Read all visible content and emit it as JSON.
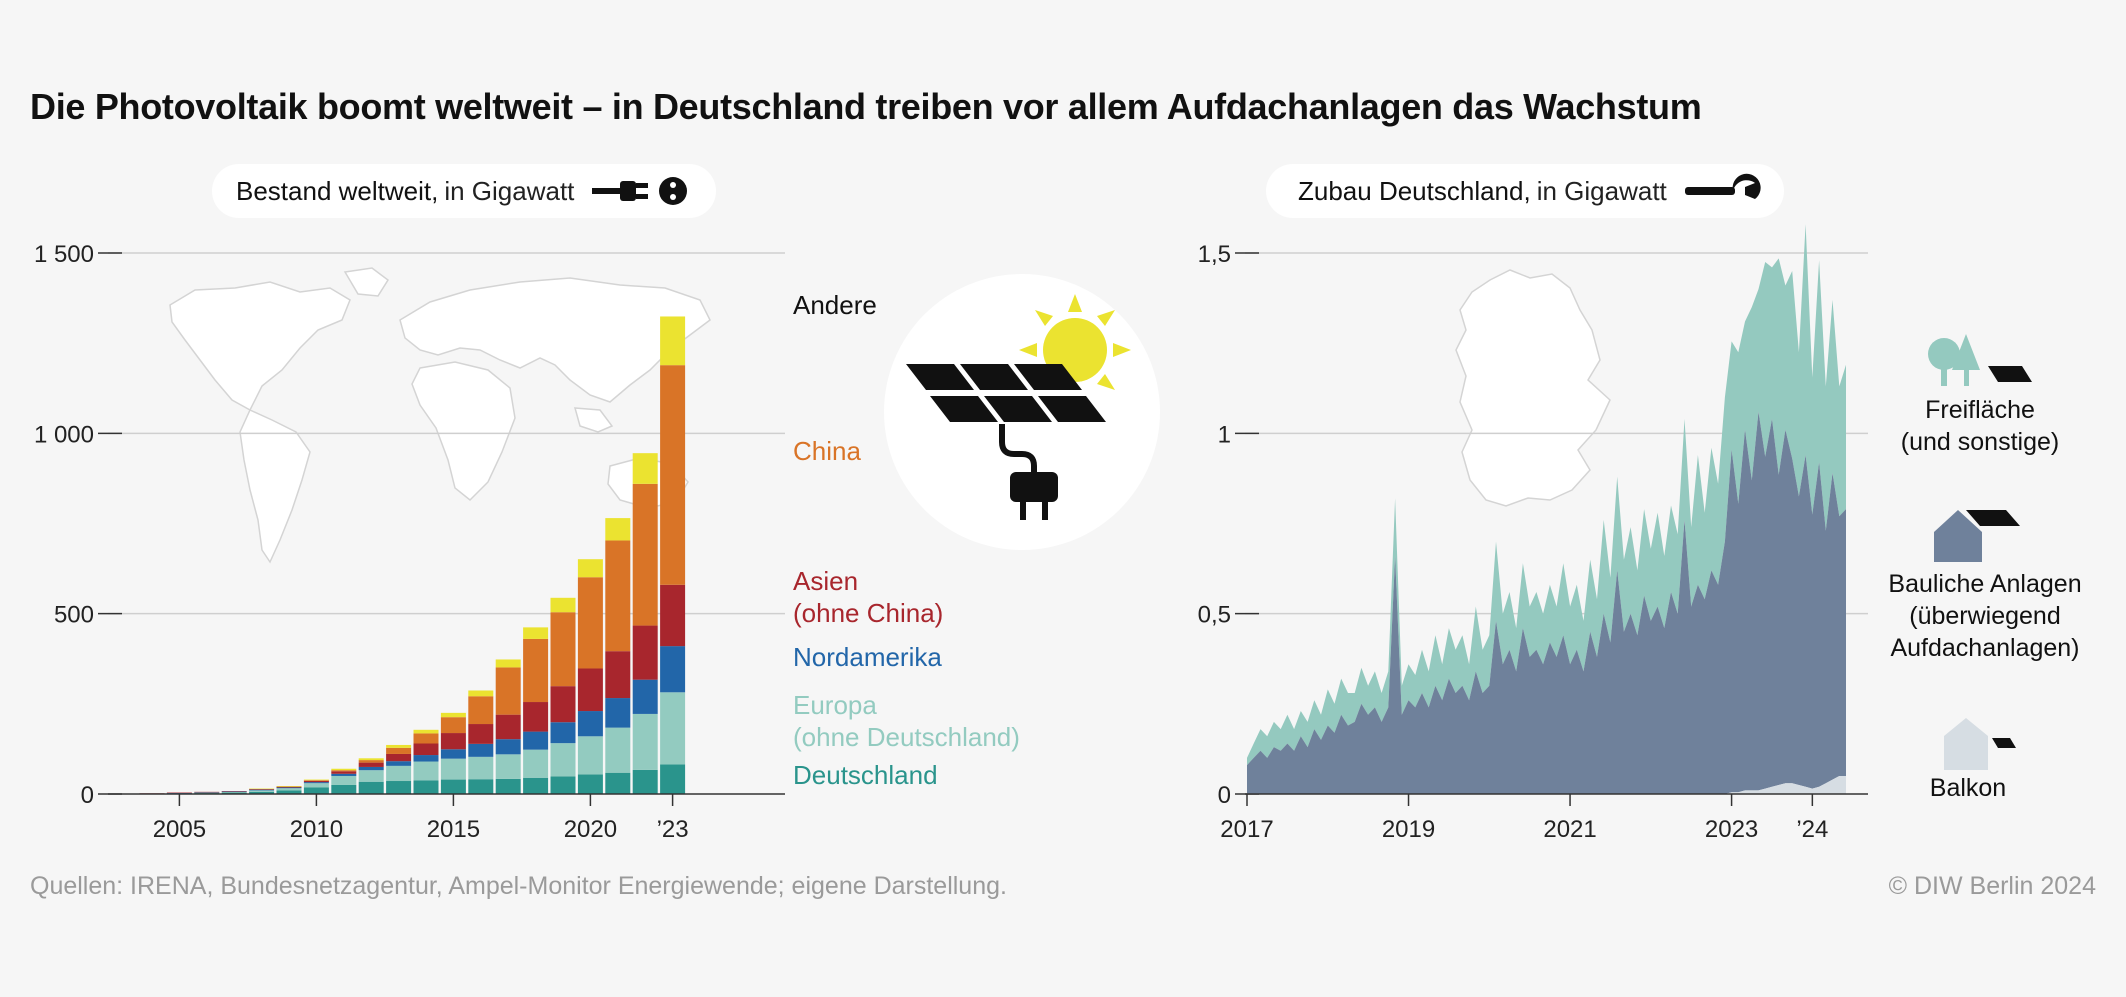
{
  "title": "Die Photovoltaik boomt weltweit – in Deutschland treiben vor allem Aufdachanlagen das Wachstum",
  "left_panel": {
    "title_bold": "Bestand weltweit,",
    "title_rest": "in Gigawatt"
  },
  "right_panel": {
    "title_bold": "Zubau Deutschland,",
    "title_rest": "in Gigawatt"
  },
  "legend_left": {
    "andere": "Andere",
    "china": "China",
    "asien_1": "Asien",
    "asien_2": "(ohne China)",
    "nordamerika": "Nordamerika",
    "europa_1": "Europa",
    "europa_2": "(ohne Deutschland)",
    "deutschland": "Deutschland"
  },
  "legend_right": {
    "freiflaeche_1": "Freifläche",
    "freiflaeche_2": "(und sonstige)",
    "bauliche_1": "Bauliche Anlagen",
    "bauliche_2": "(überwiegend",
    "bauliche_3": "Aufdachanlagen)",
    "balkon": "Balkon"
  },
  "footer": {
    "source": "Quellen: IRENA, Bundesnetzagentur, Ampel-Monitor Energiewende; eigene Darstellung.",
    "copyright": "© DIW Berlin 2024"
  },
  "colors": {
    "deutschland": "#2a948c",
    "europa": "#93cbc0",
    "nordamerika": "#2266a9",
    "asien": "#a8262d",
    "china": "#d97427",
    "andere": "#ebe330",
    "freiflaeche": "#94c9bf",
    "bauliche": "#6f819b",
    "balkon": "#d6dde3"
  },
  "chart_data": [
    {
      "type": "bar",
      "stacked": true,
      "title": "Bestand weltweit, in Gigawatt",
      "categories": [
        "2004",
        "2005",
        "2006",
        "2007",
        "2008",
        "2009",
        "2010",
        "2011",
        "2012",
        "2013",
        "2014",
        "2015",
        "2016",
        "2017",
        "2018",
        "2019",
        "2020",
        "2021",
        "2022",
        "2023"
      ],
      "x_tick_labels": [
        "2005",
        "2010",
        "2015",
        "2020",
        "’23"
      ],
      "y_tick_labels": [
        "0",
        "500",
        "1 000",
        "1 500"
      ],
      "ylim": [
        0,
        1500
      ],
      "series": [
        {
          "name": "Deutschland",
          "values": [
            1,
            2,
            3,
            4,
            6,
            10,
            18,
            25,
            34,
            36,
            38,
            40,
            41,
            42,
            45,
            49,
            54,
            59,
            67,
            82
          ]
        },
        {
          "name": "Europa (ohne Deutschland)",
          "values": [
            0,
            0,
            1,
            2,
            4,
            6,
            12,
            25,
            32,
            42,
            52,
            58,
            62,
            68,
            78,
            92,
            106,
            125,
            155,
            200
          ]
        },
        {
          "name": "Nordamerika",
          "values": [
            0,
            1,
            1,
            1,
            2,
            2,
            3,
            6,
            9,
            13,
            18,
            26,
            36,
            42,
            50,
            58,
            70,
            82,
            95,
            128
          ]
        },
        {
          "name": "Asien (ohne China)",
          "values": [
            1,
            1,
            1,
            1,
            2,
            2,
            4,
            7,
            12,
            20,
            32,
            45,
            55,
            68,
            82,
            100,
            118,
            130,
            150,
            170
          ]
        },
        {
          "name": "China",
          "values": [
            0,
            0,
            0,
            0,
            0,
            1,
            1,
            3,
            7,
            17,
            28,
            44,
            77,
            131,
            175,
            205,
            253,
            307,
            393,
            609
          ]
        },
        {
          "name": "Andere",
          "values": [
            0,
            0,
            0,
            0,
            1,
            1,
            2,
            4,
            5,
            8,
            10,
            12,
            16,
            22,
            32,
            40,
            50,
            62,
            85,
            135
          ]
        }
      ]
    },
    {
      "type": "area",
      "stacked": true,
      "title": "Zubau Deutschland, in Gigawatt",
      "x_tick_labels": [
        "2017",
        "2019",
        "2021",
        "2023",
        "’24"
      ],
      "y_tick_labels": [
        "0",
        "0,5",
        "1",
        "1,5"
      ],
      "ylim": [
        0,
        1.5
      ],
      "x_start": "2017-01",
      "x_end": "2024-06",
      "series": [
        {
          "name": "Balkon",
          "values": [
            0,
            0,
            0,
            0,
            0,
            0,
            0,
            0,
            0,
            0,
            0,
            0,
            0,
            0,
            0,
            0,
            0,
            0,
            0,
            0,
            0,
            0,
            0,
            0,
            0,
            0,
            0,
            0,
            0,
            0,
            0,
            0,
            0,
            0,
            0,
            0,
            0,
            0,
            0,
            0,
            0,
            0,
            0,
            0,
            0,
            0,
            0,
            0,
            0,
            0,
            0,
            0,
            0,
            0,
            0,
            0,
            0,
            0,
            0,
            0,
            0,
            0,
            0,
            0,
            0,
            0,
            0,
            0,
            0,
            0,
            0,
            0,
            0.005,
            0.005,
            0.01,
            0.01,
            0.01,
            0.015,
            0.02,
            0.025,
            0.03,
            0.03,
            0.025,
            0.02,
            0.015,
            0.02,
            0.03,
            0.04,
            0.05,
            0.05
          ]
        },
        {
          "name": "Bauliche Anlagen",
          "values": [
            0.08,
            0.1,
            0.12,
            0.1,
            0.13,
            0.12,
            0.14,
            0.12,
            0.16,
            0.13,
            0.18,
            0.15,
            0.19,
            0.17,
            0.22,
            0.19,
            0.2,
            0.25,
            0.22,
            0.24,
            0.2,
            0.24,
            0.66,
            0.22,
            0.26,
            0.24,
            0.28,
            0.24,
            0.3,
            0.26,
            0.32,
            0.28,
            0.3,
            0.26,
            0.34,
            0.28,
            0.3,
            0.48,
            0.36,
            0.4,
            0.34,
            0.46,
            0.38,
            0.4,
            0.36,
            0.42,
            0.38,
            0.44,
            0.36,
            0.4,
            0.34,
            0.45,
            0.38,
            0.5,
            0.42,
            0.62,
            0.45,
            0.5,
            0.44,
            0.55,
            0.48,
            0.52,
            0.46,
            0.56,
            0.5,
            0.76,
            0.52,
            0.58,
            0.54,
            0.62,
            0.58,
            0.7,
            0.95,
            0.8,
            1.0,
            0.86,
            1.05,
            0.92,
            1.02,
            0.86,
            0.98,
            0.9,
            0.8,
            0.92,
            0.76,
            0.9,
            0.7,
            0.85,
            0.72,
            0.74
          ]
        },
        {
          "name": "Freifläche (und sonstige)",
          "values": [
            0.02,
            0.04,
            0.06,
            0.06,
            0.07,
            0.06,
            0.08,
            0.06,
            0.07,
            0.07,
            0.08,
            0.07,
            0.1,
            0.08,
            0.1,
            0.09,
            0.08,
            0.1,
            0.08,
            0.1,
            0.08,
            0.1,
            0.16,
            0.08,
            0.1,
            0.09,
            0.12,
            0.1,
            0.14,
            0.1,
            0.14,
            0.12,
            0.14,
            0.1,
            0.18,
            0.12,
            0.14,
            0.22,
            0.14,
            0.16,
            0.12,
            0.18,
            0.14,
            0.16,
            0.14,
            0.16,
            0.14,
            0.2,
            0.16,
            0.18,
            0.14,
            0.2,
            0.16,
            0.26,
            0.18,
            0.26,
            0.2,
            0.24,
            0.18,
            0.24,
            0.2,
            0.26,
            0.2,
            0.24,
            0.22,
            0.28,
            0.22,
            0.36,
            0.24,
            0.34,
            0.28,
            0.4,
            0.3,
            0.42,
            0.3,
            0.48,
            0.34,
            0.54,
            0.42,
            0.6,
            0.4,
            0.52,
            0.4,
            0.64,
            0.38,
            0.56,
            0.4,
            0.48,
            0.36,
            0.4
          ]
        }
      ]
    }
  ]
}
